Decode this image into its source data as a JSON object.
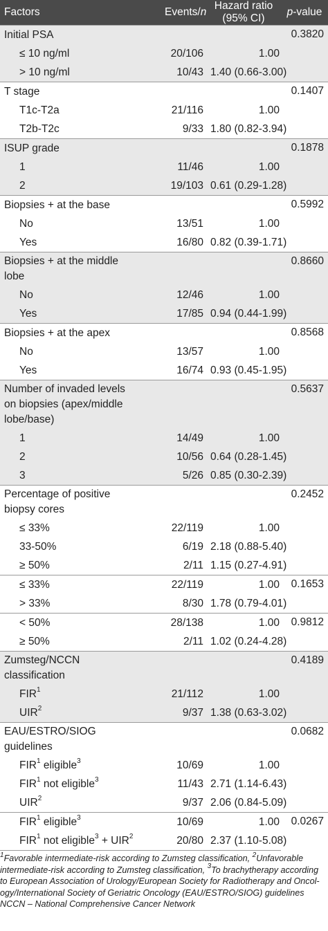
{
  "header": {
    "factors": "Factors",
    "events_prefix": "Events/",
    "events_n": "n",
    "hr_line1": "Hazard ratio",
    "hr_line2": "(95% CI)",
    "p_prefix": "p",
    "p_suffix": "-value"
  },
  "rows": {
    "psa": {
      "label": "Initial PSA",
      "p": "0.3820",
      "a": {
        "label": "≤ 10 ng/ml",
        "events": "20/106",
        "hr": "1.00"
      },
      "b": {
        "label": "> 10 ng/ml",
        "events": "10/43",
        "hr": "1.40 (0.66-3.00)"
      }
    },
    "tstage": {
      "label": "T stage",
      "p": "0.1407",
      "a": {
        "label": "T1c-T2a",
        "events": "21/116",
        "hr": "1.00"
      },
      "b": {
        "label": "T2b-T2c",
        "events": "9/33",
        "hr": "1.80 (0.82-3.94)"
      }
    },
    "isup": {
      "label": "ISUP grade",
      "p": "0.1878",
      "a": {
        "label": "1",
        "events": "11/46",
        "hr": "1.00"
      },
      "b": {
        "label": "2",
        "events": "19/103",
        "hr": "0.61 (0.29-1.28)"
      }
    },
    "base": {
      "label": "Biopsies + at the base",
      "p": "0.5992",
      "a": {
        "label": "No",
        "events": "13/51",
        "hr": "1.00"
      },
      "b": {
        "label": "Yes",
        "events": "16/80",
        "hr": "0.82 (0.39-1.71)"
      }
    },
    "middle": {
      "label_1": "Biopsies + at the middle",
      "label_2": "lobe",
      "p": "0.8660",
      "a": {
        "label": "No",
        "events": "12/46",
        "hr": "1.00"
      },
      "b": {
        "label": "Yes",
        "events": "17/85",
        "hr": "0.94 (0.44-1.99)"
      }
    },
    "apex": {
      "label": "Biopsies + at the apex",
      "p": "0.8568",
      "a": {
        "label": "No",
        "events": "13/57",
        "hr": "1.00"
      },
      "b": {
        "label": "Yes",
        "events": "16/74",
        "hr": "0.93 (0.45-1.95)"
      }
    },
    "levels": {
      "label_1": "Number of invaded levels",
      "label_2": "on biopsies (apex/middle",
      "label_3": "lobe/base)",
      "p": "0.5637",
      "a": {
        "label": "1",
        "events": "14/49",
        "hr": "1.00"
      },
      "b": {
        "label": "2",
        "events": "10/56",
        "hr": "0.64 (0.28-1.45)"
      },
      "c": {
        "label": "3",
        "events": "5/26",
        "hr": "0.85 (0.30-2.39)"
      }
    },
    "cores": {
      "label_1": "Percentage of positive",
      "label_2": "biopsy cores",
      "p": "0.2452",
      "a": {
        "label": "≤ 33%",
        "events": "22/119",
        "hr": "1.00"
      },
      "b": {
        "label": "33-50%",
        "events": "6/19",
        "hr": "2.18 (0.88-5.40)"
      },
      "c": {
        "label": "≥ 50%",
        "events": "2/11",
        "hr": "1.15 (0.27-4.91)"
      },
      "d": {
        "label": "≤ 33%",
        "events": "22/119",
        "hr": "1.00",
        "p": "0.1653"
      },
      "e": {
        "label": "> 33%",
        "events": "8/30",
        "hr": "1.78 (0.79-4.01)"
      },
      "f": {
        "label": "< 50%",
        "events": "28/138",
        "hr": "1.00",
        "p": "0.9812"
      },
      "g": {
        "label": "≥ 50%",
        "events": "2/11",
        "hr": "1.02 (0.24-4.28)"
      }
    },
    "zumsteg": {
      "label_1": "Zumsteg/NCCN",
      "label_2": "classification",
      "p": "0.4189",
      "a": {
        "label": "FIR",
        "sup": "1",
        "events": "21/112",
        "hr": "1.00"
      },
      "b": {
        "label": "UIR",
        "sup": "2",
        "events": "9/37",
        "hr": "1.38 (0.63-3.02)"
      }
    },
    "eau": {
      "label_1": "EAU/ESTRO/SIOG",
      "label_2": "guidelines",
      "p": "0.0682",
      "a": {
        "label": "FIR",
        "sup": "1",
        "label_rest": " eligible",
        "sup2": "3",
        "events": "10/69",
        "hr": "1.00"
      },
      "b": {
        "label": "FIR",
        "sup": "1",
        "label_rest": " not eligible",
        "sup2": "3",
        "events": "11/43",
        "hr": "2.71 (1.14-6.43)"
      },
      "c": {
        "label": "UIR",
        "sup": "2",
        "events": "9/37",
        "hr": "2.06 (0.84-5.09)"
      },
      "d": {
        "label": "FIR",
        "sup": "1",
        "label_rest": " eligible",
        "sup2": "3",
        "events": "10/69",
        "hr": "1.00",
        "p": "0.0267"
      },
      "e": {
        "label": "FIR",
        "sup": "1",
        "label_rest": " not eligible",
        "sup2": "3",
        "label_rest2": " + UIR",
        "sup3": "2",
        "events": "20/80",
        "hr": "2.37 (1.10-5.08)"
      }
    }
  },
  "footnotes": {
    "sup1": "1",
    "line1a": "Favorable intermediate-risk according to Zumsteg classification, ",
    "sup2": "2",
    "line1b": "Unfavorable",
    "line2a": "intermediate-risk according to Zumsteg classification, ",
    "sup3": "3",
    "line2b": "To brachytherapy according",
    "line3": "to European Association of Urology/European Society for Radiotherapy and Oncol-",
    "line4": "ogy/International Society of Geriatric Oncology (EAU/ESTRO/SIOG) guidelines",
    "line5": "NCCN – National Comprehensive Cancer Network"
  }
}
